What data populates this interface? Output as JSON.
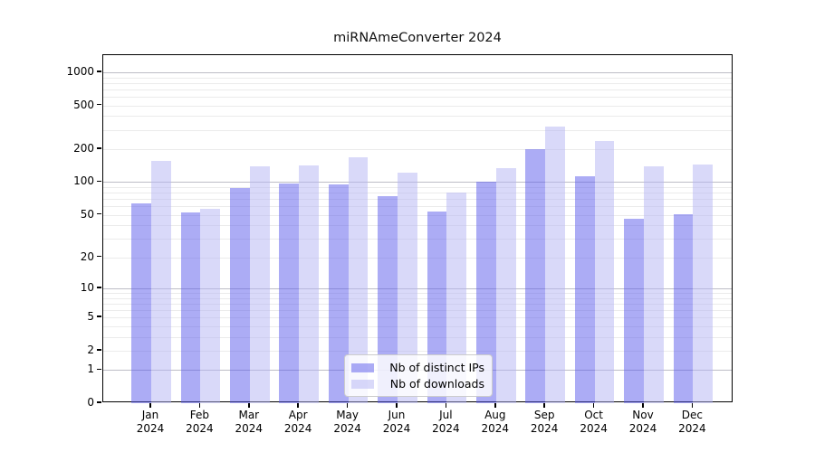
{
  "chart_data": {
    "type": "bar",
    "title": "miRNAmeConverter 2024",
    "year": "2024",
    "months": [
      "Jan",
      "Feb",
      "Mar",
      "Apr",
      "May",
      "Jun",
      "Jul",
      "Aug",
      "Sep",
      "Oct",
      "Nov",
      "Dec"
    ],
    "categories": [
      "Jan 2024",
      "Feb 2024",
      "Mar 2024",
      "Apr 2024",
      "May 2024",
      "Jun 2024",
      "Jul 2024",
      "Aug 2024",
      "Sep 2024",
      "Oct 2024",
      "Nov 2024",
      "Dec 2024"
    ],
    "series": [
      {
        "name": "Nb of distinct IPs",
        "color": "rgba(90,90,235,0.5)",
        "values": [
          64,
          53,
          88,
          97,
          96,
          74,
          54,
          100,
          200,
          113,
          46,
          51
        ]
      },
      {
        "name": "Nb of downloads",
        "color": "rgba(179,179,243,0.5)",
        "values": [
          156,
          57,
          139,
          142,
          168,
          122,
          80,
          134,
          320,
          236,
          139,
          144
        ]
      }
    ],
    "yscale": "log1p",
    "yticks": [
      0,
      1,
      2,
      5,
      10,
      20,
      50,
      100,
      200,
      500,
      1000
    ],
    "ylim": [
      0,
      1430
    ],
    "xlabel": "",
    "ylabel": "",
    "grid": true,
    "legend_position": "lower center"
  },
  "colors": {
    "grid_major": "#bdbdc6",
    "grid_minor": "#ebebeb",
    "axis": "#000000",
    "background": "#ffffff",
    "bar_distinct_ips": "rgba(90,90,235,0.5)",
    "bar_downloads": "rgba(179,179,243,0.5)"
  }
}
